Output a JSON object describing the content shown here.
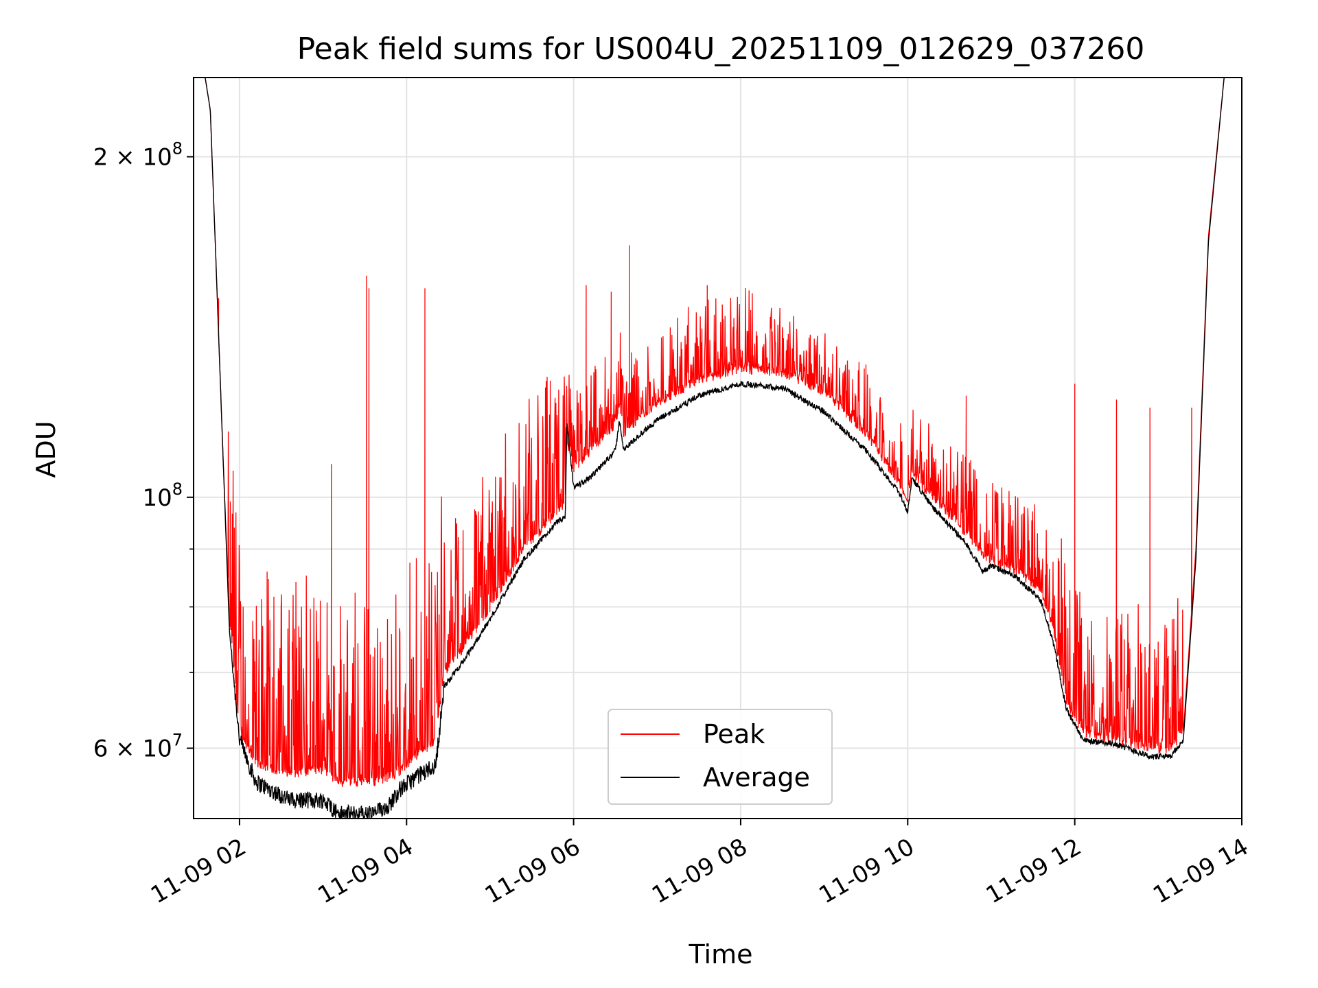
{
  "chart_data": {
    "type": "line",
    "title": "Peak field sums for US004U_20251109_012629_037260",
    "xlabel": "Time",
    "ylabel": "ADU",
    "yscale": "log",
    "xlim": [
      1.45,
      14.0
    ],
    "ylim": [
      52000000,
      235000000
    ],
    "grid": true,
    "legend_position": "lower-center",
    "x_ticks": [
      {
        "value": 2,
        "label": "11-09 02"
      },
      {
        "value": 4,
        "label": "11-09 04"
      },
      {
        "value": 6,
        "label": "11-09 06"
      },
      {
        "value": 8,
        "label": "11-09 08"
      },
      {
        "value": 10,
        "label": "11-09 10"
      },
      {
        "value": 12,
        "label": "11-09 12"
      },
      {
        "value": 14,
        "label": "11-09 14"
      }
    ],
    "y_major_ticks": [
      {
        "value": 200000000,
        "mantissa": "2 × 10",
        "exp": "8"
      },
      {
        "value": 100000000,
        "mantissa": "10",
        "exp": "8"
      },
      {
        "value": 60000000,
        "mantissa": "6 × 10",
        "exp": "7"
      }
    ],
    "y_minor_ticks": [
      60000000,
      70000000,
      80000000,
      90000000,
      100000000,
      200000000
    ],
    "series": [
      {
        "name": "Peak",
        "color": "#ff0000",
        "baseline": [
          [
            1.55,
            245000000.0
          ],
          [
            1.65,
            220000000.0
          ],
          [
            1.72,
            160000000.0
          ],
          [
            1.8,
            110000000.0
          ],
          [
            1.88,
            78000000.0
          ],
          [
            2.0,
            62000000.0
          ],
          [
            2.2,
            58000000.0
          ],
          [
            2.6,
            57000000.0
          ],
          [
            3.0,
            57500000.0
          ],
          [
            3.2,
            56000000.0
          ],
          [
            3.6,
            56000000.0
          ],
          [
            3.9,
            57000000.0
          ],
          [
            4.1,
            59000000.0
          ],
          [
            4.35,
            61000000.0
          ],
          [
            4.45,
            70000000.0
          ],
          [
            4.7,
            74000000.0
          ],
          [
            5.0,
            80000000.0
          ],
          [
            5.4,
            90000000.0
          ],
          [
            5.8,
            97000000.0
          ],
          [
            5.9,
            99000000.0
          ],
          [
            5.92,
            112000000.0
          ],
          [
            6.0,
            106000000.0
          ],
          [
            6.2,
            110000000.0
          ],
          [
            6.4,
            114000000.0
          ],
          [
            6.5,
            116000000.0
          ],
          [
            6.55,
            121000000.0
          ],
          [
            6.6,
            113000000.0
          ],
          [
            6.7,
            116000000.0
          ],
          [
            7.0,
            121000000.0
          ],
          [
            7.5,
            127000000.0
          ],
          [
            8.0,
            130000000.0
          ],
          [
            8.5,
            129000000.0
          ],
          [
            9.0,
            124000000.0
          ],
          [
            9.5,
            114000000.0
          ],
          [
            9.9,
            103000000.0
          ],
          [
            10.0,
            99000000.0
          ],
          [
            10.05,
            105000000.0
          ],
          [
            10.3,
            100000000.0
          ],
          [
            10.7,
            93000000.0
          ],
          [
            10.9,
            89000000.0
          ],
          [
            11.0,
            88000000.0
          ],
          [
            11.3,
            86000000.0
          ],
          [
            11.6,
            83000000.0
          ],
          [
            11.75,
            76000000.0
          ],
          [
            11.9,
            66000000.0
          ],
          [
            12.1,
            62000000.0
          ],
          [
            12.5,
            61000000.0
          ],
          [
            12.9,
            60000000.0
          ],
          [
            13.15,
            60000000.0
          ],
          [
            13.3,
            62000000.0
          ],
          [
            13.45,
            90000000.0
          ],
          [
            13.6,
            170000000.0
          ],
          [
            13.8,
            240000000.0
          ],
          [
            14.0,
            240000000.0
          ]
        ],
        "spike_windows": [
          {
            "start": 1.85,
            "end": 4.45,
            "max_ratio": 1.5
          },
          {
            "start": 4.45,
            "end": 5.9,
            "max_ratio": 1.35
          },
          {
            "start": 5.9,
            "end": 8.2,
            "max_ratio": 1.18
          },
          {
            "start": 8.2,
            "end": 9.95,
            "max_ratio": 1.14
          },
          {
            "start": 10.0,
            "end": 11.8,
            "max_ratio": 1.18
          },
          {
            "start": 11.8,
            "end": 13.3,
            "max_ratio": 1.35
          }
        ],
        "notable_peaks": [
          [
            1.75,
            150000000.0
          ],
          [
            3.52,
            157000000.0
          ],
          [
            3.55,
            153000000.0
          ],
          [
            4.22,
            153000000.0
          ],
          [
            3.1,
            107000000.0
          ],
          [
            6.15,
            154000000.0
          ],
          [
            6.45,
            152000000.0
          ],
          [
            6.67,
            167000000.0
          ],
          [
            7.6,
            154000000.0
          ],
          [
            8.5,
            141000000.0
          ],
          [
            9.5,
            131000000.0
          ],
          [
            10.7,
            123000000.0
          ],
          [
            12.0,
            126000000.0
          ],
          [
            12.5,
            122000000.0
          ],
          [
            12.9,
            120000000.0
          ],
          [
            13.4,
            120000000.0
          ]
        ]
      },
      {
        "name": "Average",
        "color": "#000000",
        "baseline": [
          [
            1.55,
            245000000.0
          ],
          [
            1.65,
            220000000.0
          ],
          [
            1.72,
            160000000.0
          ],
          [
            1.8,
            110000000.0
          ],
          [
            1.88,
            76000000.0
          ],
          [
            2.0,
            61000000.0
          ],
          [
            2.2,
            56000000.0
          ],
          [
            2.6,
            54000000.0
          ],
          [
            3.0,
            54000000.0
          ],
          [
            3.2,
            52500000.0
          ],
          [
            3.6,
            52500000.0
          ],
          [
            3.8,
            53500000.0
          ],
          [
            3.9,
            55000000.0
          ],
          [
            4.1,
            56500000.0
          ],
          [
            4.35,
            58000000.0
          ],
          [
            4.45,
            68000000.0
          ],
          [
            4.7,
            72000000.0
          ],
          [
            5.0,
            78000000.0
          ],
          [
            5.4,
            88000000.0
          ],
          [
            5.8,
            95000000.0
          ],
          [
            5.9,
            96000000.0
          ],
          [
            5.92,
            116000000.0
          ],
          [
            6.0,
            102000000.0
          ],
          [
            6.2,
            104000000.0
          ],
          [
            6.4,
            108000000.0
          ],
          [
            6.5,
            110000000.0
          ],
          [
            6.55,
            117000000.0
          ],
          [
            6.6,
            110000000.0
          ],
          [
            6.7,
            112000000.0
          ],
          [
            7.0,
            117000000.0
          ],
          [
            7.5,
            123000000.0
          ],
          [
            8.0,
            126000000.0
          ],
          [
            8.5,
            125000000.0
          ],
          [
            9.0,
            119000000.0
          ],
          [
            9.5,
            110000000.0
          ],
          [
            9.9,
            101000000.0
          ],
          [
            10.0,
            97000000.0
          ],
          [
            10.05,
            104000000.0
          ],
          [
            10.3,
            98000000.0
          ],
          [
            10.7,
            91000000.0
          ],
          [
            10.9,
            86000000.0
          ],
          [
            11.0,
            87000000.0
          ],
          [
            11.3,
            85000000.0
          ],
          [
            11.6,
            81000000.0
          ],
          [
            11.75,
            74000000.0
          ],
          [
            11.9,
            65000000.0
          ],
          [
            12.1,
            61000000.0
          ],
          [
            12.5,
            60500000.0
          ],
          [
            12.9,
            59000000.0
          ],
          [
            13.15,
            59000000.0
          ],
          [
            13.3,
            61000000.0
          ],
          [
            13.45,
            88000000.0
          ],
          [
            13.6,
            168000000.0
          ],
          [
            13.8,
            240000000.0
          ],
          [
            14.0,
            240000000.0
          ]
        ]
      }
    ]
  }
}
